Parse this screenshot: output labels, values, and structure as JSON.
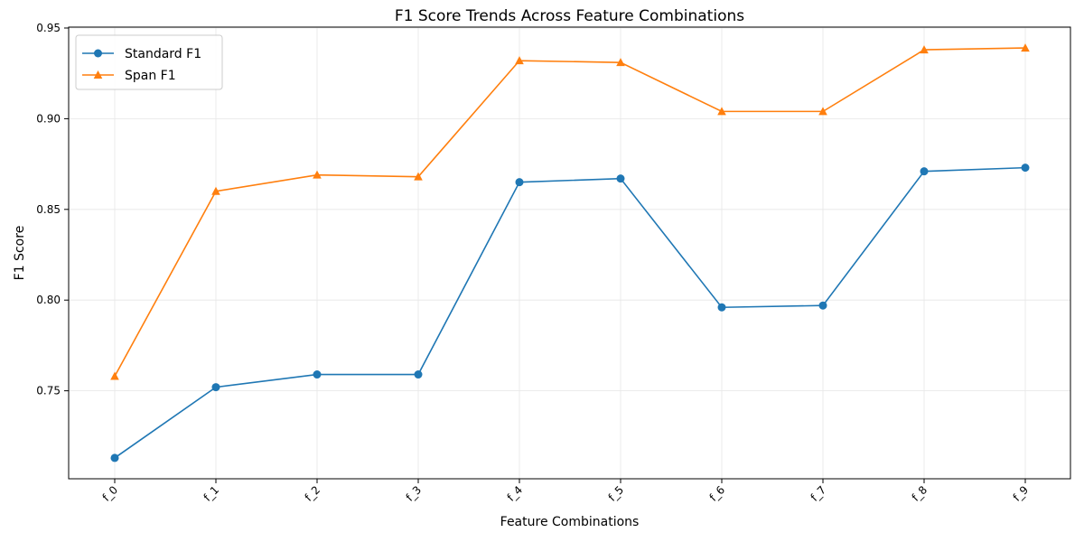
{
  "chart_data": {
    "type": "line",
    "title": "F1 Score Trends Across Feature Combinations",
    "xlabel": "Feature Combinations",
    "ylabel": "F1 Score",
    "categories": [
      "f_0",
      "f_1",
      "f_2",
      "f_3",
      "f_4",
      "f_5",
      "f_6",
      "f_7",
      "f_8",
      "f_9"
    ],
    "ylim": [
      0.7,
      0.95
    ],
    "yticks": [
      "0.75",
      "0.80",
      "0.85",
      "0.90",
      "0.95"
    ],
    "grid": true,
    "legend_position": "top-left",
    "series": [
      {
        "name": "Standard F1",
        "color": "#1f77b4",
        "marker": "circle",
        "values": [
          0.713,
          0.752,
          0.759,
          0.759,
          0.865,
          0.867,
          0.796,
          0.797,
          0.871,
          0.873
        ]
      },
      {
        "name": "Span F1",
        "color": "#ff7f0e",
        "marker": "triangle",
        "values": [
          0.758,
          0.86,
          0.869,
          0.868,
          0.932,
          0.931,
          0.904,
          0.904,
          0.938,
          0.939
        ]
      }
    ]
  }
}
